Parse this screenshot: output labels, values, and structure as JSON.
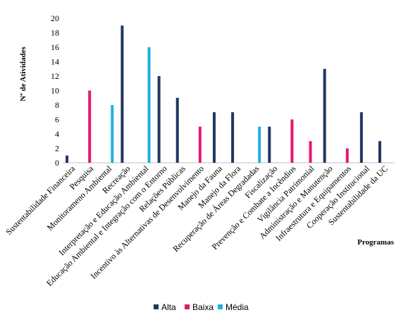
{
  "chart_data": {
    "type": "bar",
    "xlabel": "Programas",
    "ylabel": "Nº de Atividades",
    "ylim": [
      0,
      20
    ],
    "yticks": [
      0,
      2,
      4,
      6,
      8,
      10,
      12,
      14,
      16,
      18,
      20
    ],
    "grid": false,
    "legend_position": "bottom",
    "categories": [
      "Sustentabilidade Financeira",
      "Pesquisa",
      "Monitorameno Ambiental",
      "Recreação",
      "Interpretação e Educação Ambiental",
      "Educação Ambiental e Integração com o Entorno",
      "Relações Públicas",
      "Incentivo às Alternativas de Desenvolvimento",
      "Manejo da Fauna",
      "Manejo da Flora",
      "Recuperação de Áreas Degradadas",
      "Fiscalização",
      "Prevenção e Combate a Incêndios",
      "Vigilância Patrimonial",
      "Administração e Manutenção",
      "Infraestrutura e Equipamentos",
      "Cooperação Institucional",
      "Sustentabilidade da UC"
    ],
    "series": [
      {
        "name": "Alta",
        "color": "#1f3864",
        "values": [
          1,
          null,
          null,
          19,
          null,
          12,
          9,
          null,
          7,
          7,
          null,
          5,
          null,
          null,
          13,
          null,
          7,
          3
        ]
      },
      {
        "name": "Baixa",
        "color": "#e6176f",
        "values": [
          null,
          10,
          null,
          null,
          null,
          null,
          null,
          5,
          null,
          null,
          null,
          null,
          6,
          3,
          null,
          2,
          null,
          null
        ]
      },
      {
        "name": "Média",
        "color": "#1fb0e2",
        "values": [
          null,
          null,
          8,
          null,
          16,
          null,
          null,
          null,
          null,
          null,
          5,
          null,
          null,
          null,
          null,
          null,
          null,
          null
        ]
      }
    ]
  }
}
